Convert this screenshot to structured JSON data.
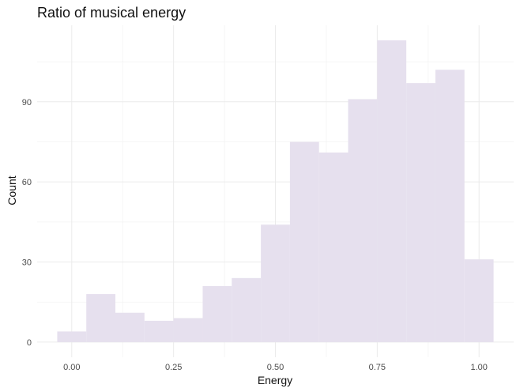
{
  "chart_data": {
    "type": "bar",
    "title": "Ratio of  musical energy",
    "xlabel": "Energy",
    "ylabel": "Count",
    "bin_width": 0.0714,
    "bin_centers": [
      0.0,
      0.0714,
      0.1428,
      0.2142,
      0.2857,
      0.3571,
      0.4285,
      0.5,
      0.5714,
      0.6428,
      0.7142,
      0.7857,
      0.8571,
      0.9285,
      1.0
    ],
    "values": [
      4,
      18,
      11,
      8,
      9,
      21,
      24,
      44,
      75,
      71,
      91,
      113,
      97,
      102,
      31
    ],
    "x_ticks": [
      0.0,
      0.25,
      0.5,
      0.75,
      1.0
    ],
    "x_tick_labels": [
      "0.00",
      "0.25",
      "0.50",
      "0.75",
      "1.00"
    ],
    "y_ticks": [
      0,
      30,
      60,
      90
    ],
    "y_tick_labels": [
      "0",
      "30",
      "60",
      "90"
    ],
    "xlim": [
      -0.085,
      1.085
    ],
    "ylim": [
      -5.65,
      118.65
    ],
    "grid": true,
    "bar_color": "#e6e0ee"
  }
}
